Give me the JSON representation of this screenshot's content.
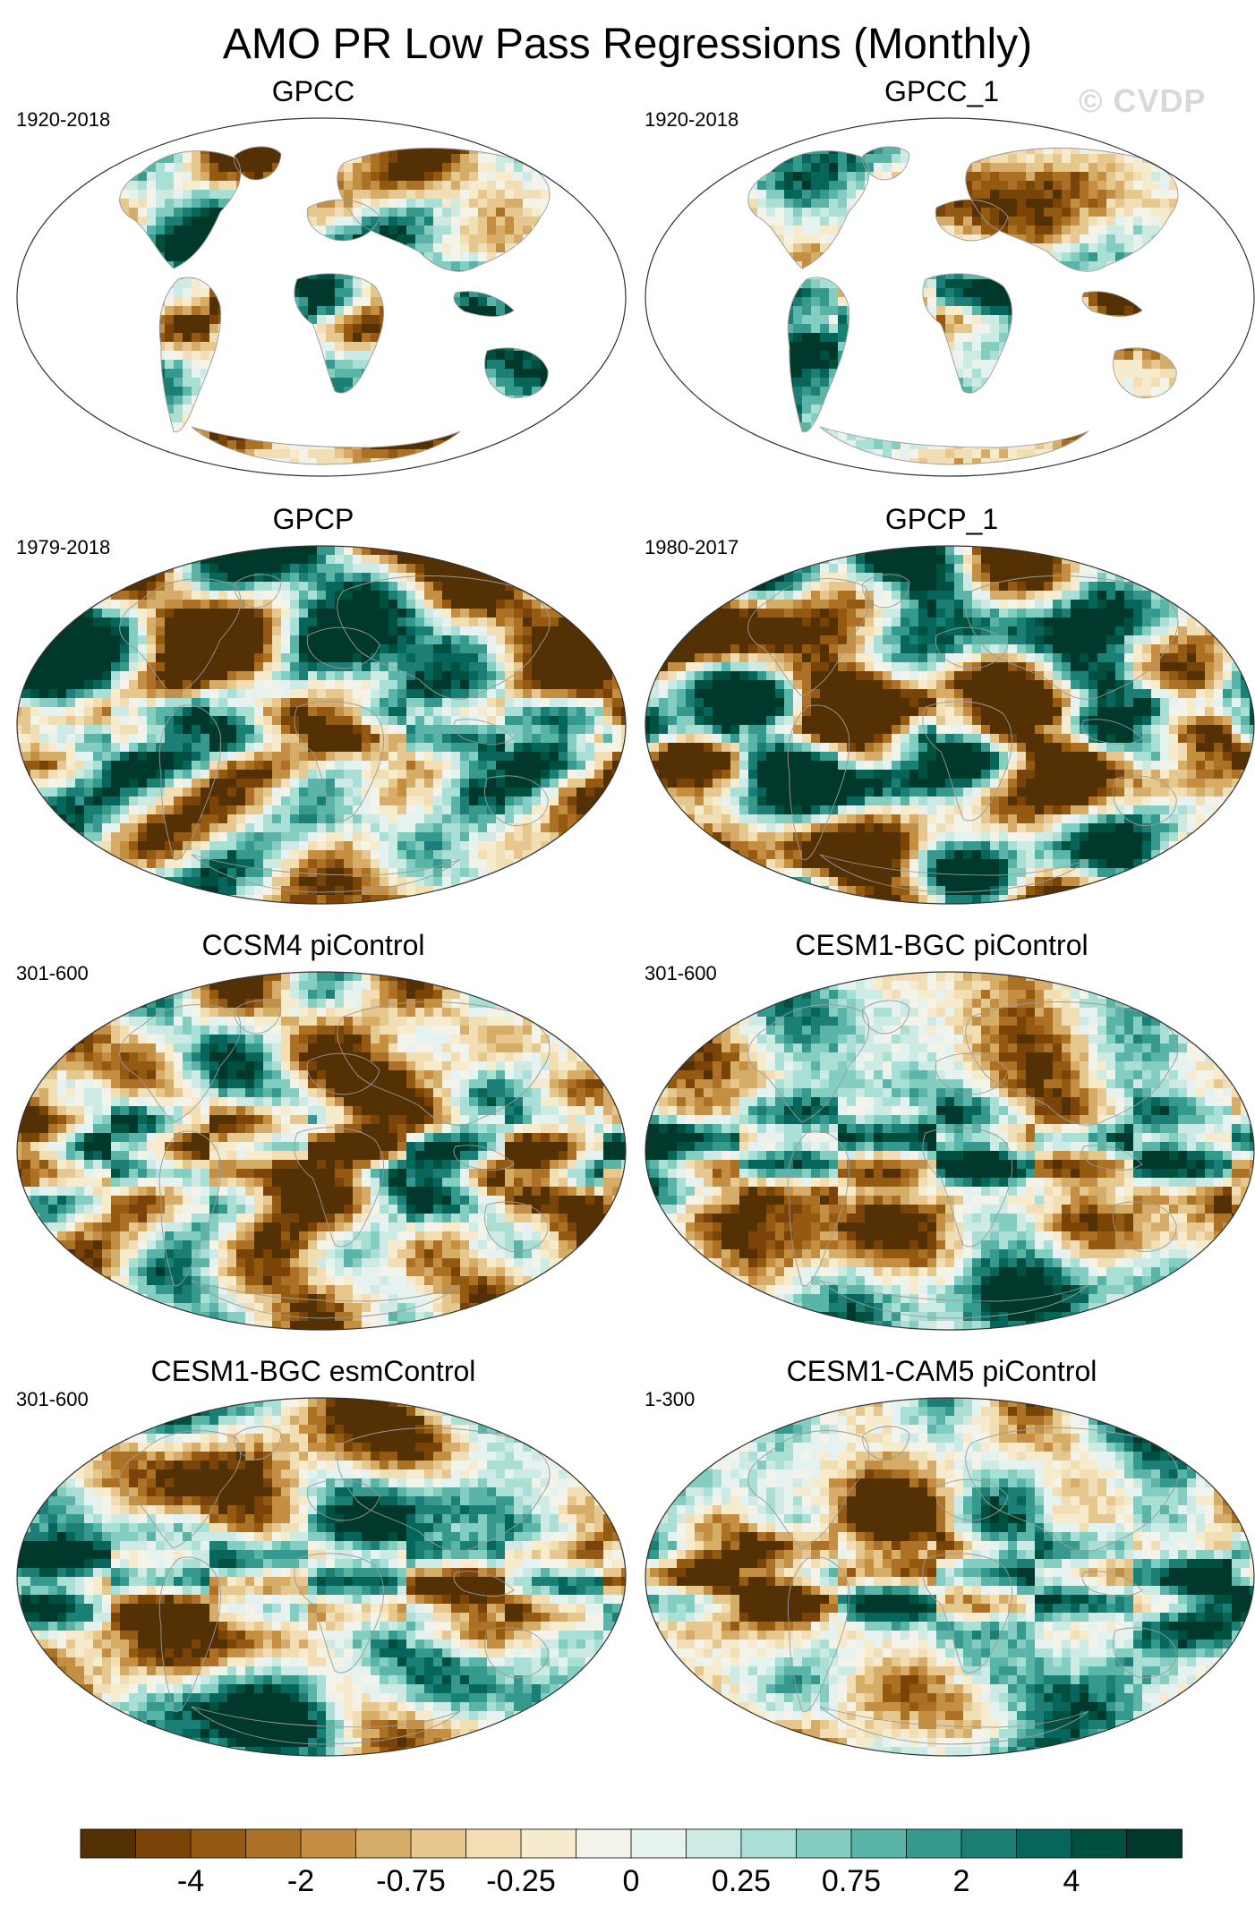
{
  "title": "AMO PR Low Pass Regressions (Monthly)",
  "watermark": "© CVDP",
  "panels": [
    {
      "name": "GPCC",
      "period": "1920-2018",
      "coverage": "land"
    },
    {
      "name": "GPCC_1",
      "period": "1920-2018",
      "coverage": "land"
    },
    {
      "name": "GPCP",
      "period": "1979-2018",
      "coverage": "global"
    },
    {
      "name": "GPCP_1",
      "period": "1980-2017",
      "coverage": "global"
    },
    {
      "name": "CCSM4 piControl",
      "period": "301-600",
      "coverage": "global"
    },
    {
      "name": "CESM1-BGC piControl",
      "period": "301-600",
      "coverage": "global"
    },
    {
      "name": "CESM1-BGC esmControl",
      "period": "301-600",
      "coverage": "global"
    },
    {
      "name": "CESM1-CAM5 piControl",
      "period": "1-300",
      "coverage": "global"
    }
  ],
  "colorbar": {
    "colors": [
      "#543005",
      "#7a4408",
      "#955a12",
      "#ad7125",
      "#c48f43",
      "#d6ad68",
      "#e6c88f",
      "#f2deb4",
      "#f6eccd",
      "#f4f3ea",
      "#e6f2ef",
      "#cdebe4",
      "#aadfd6",
      "#83cdc1",
      "#5ab5a8",
      "#35998e",
      "#1b7f76",
      "#07665c",
      "#00503f",
      "#00382c"
    ],
    "tick_labels": [
      "-4",
      "-2",
      "-0.75",
      "-0.25",
      "0",
      "0.25",
      "0.75",
      "2",
      "4"
    ]
  }
}
